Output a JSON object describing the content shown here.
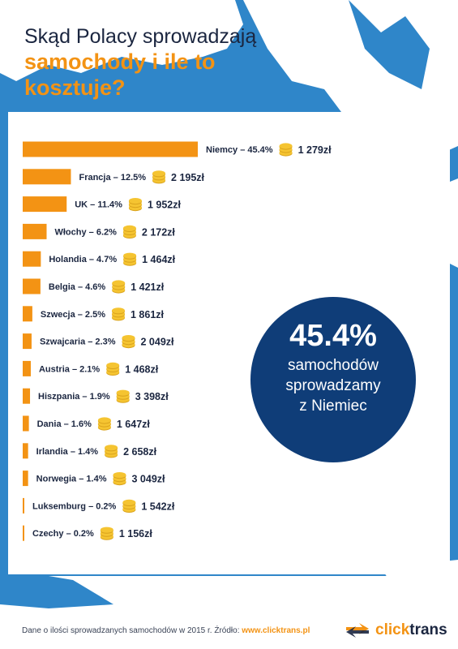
{
  "title": {
    "line1": "Skąd Polacy sprowadzają",
    "line2": "samochody i ile to",
    "line3": "kosztuje?"
  },
  "colors": {
    "bar": "#f39314",
    "coin": "#f5c431",
    "circle": "#0f3d78",
    "text": "#1b2640",
    "ocean": "#2f86c9",
    "land": "#ffffff"
  },
  "chart_data": {
    "type": "bar",
    "orientation": "horizontal",
    "categories": [
      "Niemcy",
      "Francja",
      "UK",
      "Włochy",
      "Holandia",
      "Belgia",
      "Szwecja",
      "Szwajcaria",
      "Austria",
      "Hiszpania",
      "Dania",
      "Irlandia",
      "Norwegia",
      "Luksemburg",
      "Czechy"
    ],
    "values": [
      45.4,
      12.5,
      11.4,
      6.2,
      4.7,
      4.6,
      2.5,
      2.3,
      2.1,
      1.9,
      1.6,
      1.4,
      1.4,
      0.2,
      0.2
    ],
    "labels": [
      "Niemcy – 45.4%",
      "Francja – 12.5%",
      "UK – 11.4%",
      "Włochy – 6.2%",
      "Holandia – 4.7%",
      "Belgia – 4.6%",
      "Szwecja – 2.5%",
      "Szwajcaria – 2.3%",
      "Austria – 2.1%",
      "Hiszpania – 1.9%",
      "Dania – 1.6%",
      "Irlandia – 1.4%",
      "Norwegia – 1.4%",
      "Luksemburg – 0.2%",
      "Czechy – 0.2%"
    ],
    "prices": [
      "1 279zł",
      "2 195zł",
      "1 952zł",
      "2 172zł",
      "1 464zł",
      "1 421zł",
      "1 861zł",
      "2 049zł",
      "1 468zł",
      "3 398zł",
      "1 647zł",
      "2 658zł",
      "3 049zł",
      "1 542zł",
      "1 156zł"
    ],
    "unit": "%"
  },
  "highlight": {
    "value": "45.4%",
    "line1": "samochodów",
    "line2": "sprowadzamy",
    "line3": "z Niemiec"
  },
  "footer": {
    "source_text": "Dane o ilości sprowadzanych samochodów w 2015 r. Źródło: ",
    "source_url": "www.clicktrans.pl",
    "logo_click": "click",
    "logo_trans": "trans"
  }
}
